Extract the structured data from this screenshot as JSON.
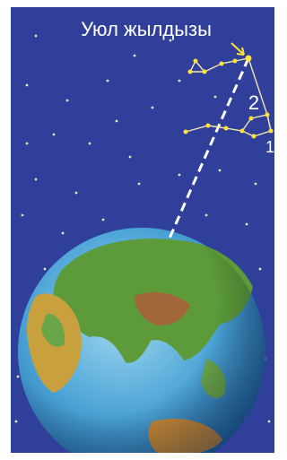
{
  "caption": "Уюл жылдызы",
  "labels": {
    "big_dipper": "2",
    "little_dipper": "1"
  }
}
